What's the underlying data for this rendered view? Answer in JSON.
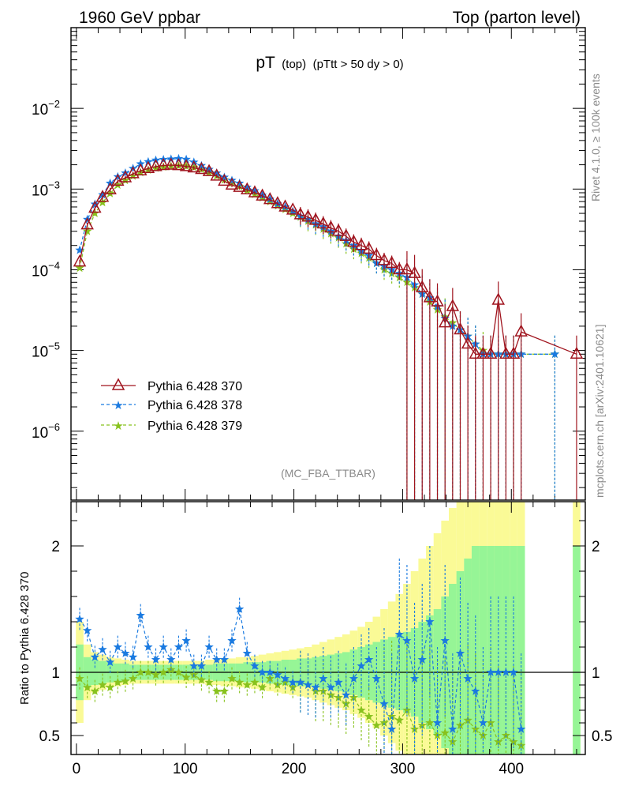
{
  "header": {
    "left": "1960 GeV ppbar",
    "right": "Top (parton level)"
  },
  "side_labels": {
    "rivet": "Rivet 4.1.0, ≥ 100k events",
    "mcplots": "mcplots.cern.ch [arXiv:2401.10621]"
  },
  "chart_data": [
    {
      "type": "scatter",
      "panel": "main",
      "title": {
        "main": "pT",
        "sub": "(top)",
        "cut": "(pTtt > 50 dy > 0)"
      },
      "analysis": "(MC_FBA_TTBAR)",
      "yscale": "log",
      "xlim": [
        -5,
        468
      ],
      "ylim": [
        1.4e-07,
        0.1
      ],
      "yticks": [
        {
          "value": 0.01,
          "mant": "10",
          "exp": "−2"
        },
        {
          "value": 0.001,
          "mant": "10",
          "exp": "−3"
        },
        {
          "value": 0.0001,
          "mant": "10",
          "exp": "−4"
        },
        {
          "value": 1e-05,
          "mant": "10",
          "exp": "−5"
        },
        {
          "value": 1e-06,
          "mant": "10",
          "exp": "−6"
        }
      ],
      "legend": [
        "Pythia 6.428 370",
        "Pythia 6.428 378",
        "Pythia 6.428 379"
      ],
      "series": [
        {
          "name": "Pythia 6.428 370",
          "color": "#a0141e",
          "marker": "triangle",
          "line": "solid",
          "x": [
            3,
            10,
            17,
            24,
            31,
            38,
            45,
            52,
            59,
            66,
            73,
            80,
            87,
            94,
            101,
            108,
            115,
            122,
            129,
            136,
            143,
            150,
            157,
            164,
            171,
            178,
            185,
            192,
            199,
            206,
            213,
            220,
            227,
            234,
            241,
            248,
            255,
            262,
            269,
            276,
            283,
            290,
            297,
            304,
            311,
            318,
            325,
            332,
            339,
            346,
            353,
            360,
            367,
            374,
            381,
            388,
            395,
            402,
            409,
            460
          ],
          "y": [
            0.000125,
            0.00036,
            0.00058,
            0.00079,
            0.00098,
            0.00125,
            0.00138,
            0.00155,
            0.00168,
            0.0018,
            0.0019,
            0.00196,
            0.00198,
            0.00195,
            0.0019,
            0.00183,
            0.00175,
            0.00165,
            0.00145,
            0.00125,
            0.00112,
            0.00105,
            0.00098,
            0.0009,
            0.00082,
            0.00074,
            0.00066,
            0.0006,
            0.00055,
            0.00048,
            0.00045,
            0.00041,
            0.00037,
            0.00033,
            0.0003,
            0.00026,
            0.00022,
            0.0002,
            0.00018,
            0.00015,
            0.00013,
            0.00012,
            0.0001,
            0.0001,
            9e-05,
            6e-05,
            4.5e-05,
            4e-05,
            2.2e-05,
            3.5e-05,
            1.8e-05,
            1.2e-05,
            9e-06,
            9e-06,
            9e-06,
            4.2e-05,
            9e-06,
            9e-06,
            1.7e-05,
            9e-06
          ]
        },
        {
          "name": "Pythia 6.428 378",
          "color": "#1a7ae0",
          "marker": "star",
          "line": "dashed",
          "x": [
            3,
            10,
            17,
            24,
            31,
            38,
            45,
            52,
            59,
            66,
            73,
            80,
            87,
            94,
            101,
            108,
            115,
            122,
            129,
            136,
            143,
            150,
            157,
            164,
            171,
            178,
            185,
            192,
            199,
            206,
            213,
            220,
            227,
            234,
            241,
            248,
            255,
            262,
            269,
            276,
            283,
            290,
            297,
            304,
            311,
            318,
            325,
            332,
            339,
            346,
            353,
            360,
            367,
            374,
            381,
            388,
            395,
            402,
            409,
            440
          ],
          "y": [
            0.000175,
            0.00042,
            0.00065,
            0.00085,
            0.00118,
            0.00142,
            0.00158,
            0.0018,
            0.00205,
            0.00218,
            0.00228,
            0.00232,
            0.00235,
            0.00238,
            0.00233,
            0.00215,
            0.00195,
            0.00175,
            0.00158,
            0.0014,
            0.00128,
            0.00118,
            0.00105,
            0.00095,
            0.00084,
            0.00075,
            0.00066,
            0.0006,
            0.00053,
            0.00046,
            0.00042,
            0.00037,
            0.00034,
            0.0003,
            0.00026,
            0.00023,
            0.0002,
            0.00017,
            0.00015,
            0.00012,
            0.00011,
            0.0001,
            9e-05,
            8e-05,
            6.5e-05,
            5e-05,
            4.5e-05,
            3.5e-05,
            2.5e-05,
            2e-05,
            1.8e-05,
            1.5e-05,
            1.2e-05,
            9e-06,
            9e-06,
            9e-06,
            9e-06,
            9e-06,
            9e-06,
            9e-06
          ]
        },
        {
          "name": "Pythia 6.428 379",
          "color": "#88c21e",
          "marker": "star",
          "line": "dashed",
          "x": [
            3,
            10,
            17,
            24,
            31,
            38,
            45,
            52,
            59,
            66,
            73,
            80,
            87,
            94,
            101,
            108,
            115,
            122,
            129,
            136,
            143,
            150,
            157,
            164,
            171,
            178,
            185,
            192,
            199,
            206,
            213,
            220,
            227,
            234,
            241,
            248,
            255,
            262,
            269,
            276,
            283,
            290,
            297,
            304,
            311,
            318,
            325,
            332,
            339,
            346,
            353,
            360,
            367,
            374,
            381,
            388,
            395,
            402,
            409,
            440
          ],
          "y": [
            0.000105,
            0.0003,
            0.0005,
            0.00068,
            0.00088,
            0.00112,
            0.00128,
            0.00145,
            0.0016,
            0.00172,
            0.00182,
            0.00188,
            0.00192,
            0.00194,
            0.00192,
            0.00186,
            0.00175,
            0.0016,
            0.00145,
            0.0013,
            0.00118,
            0.00108,
            0.00096,
            0.00086,
            0.00078,
            0.0007,
            0.00062,
            0.00056,
            0.0005,
            0.00045,
            0.0004,
            0.00036,
            0.00032,
            0.00028,
            0.00025,
            0.00021,
            0.00018,
            0.00016,
            0.00014,
            0.00012,
            0.0001,
            9e-05,
            8e-05,
            7e-05,
            6e-05,
            5e-05,
            4e-05,
            3.2e-05,
            2.6e-05,
            2.2e-05,
            1.8e-05,
            1.5e-05,
            1.2e-05,
            1e-05,
            9e-06,
            9e-06,
            9e-06,
            9e-06,
            9e-06,
            9e-06
          ]
        }
      ]
    },
    {
      "type": "scatter",
      "panel": "ratio",
      "ylabel": "Ratio to Pythia 6.428 370",
      "xlim": [
        -5,
        468
      ],
      "ylim": [
        0.35,
        2.35
      ],
      "yticks": [
        0.5,
        1,
        2
      ],
      "xticks": [
        0,
        100,
        200,
        300,
        400
      ],
      "reference": 1,
      "bands": {
        "x": [
          3,
          10,
          17,
          24,
          31,
          38,
          45,
          52,
          59,
          66,
          73,
          80,
          87,
          94,
          101,
          108,
          115,
          122,
          129,
          136,
          143,
          150,
          157,
          164,
          171,
          178,
          185,
          192,
          199,
          206,
          213,
          220,
          227,
          234,
          241,
          248,
          255,
          262,
          269,
          276,
          283,
          290,
          297,
          304,
          311,
          318,
          325,
          332,
          339,
          346,
          353,
          360,
          367,
          374,
          381,
          388,
          395,
          402,
          409,
          460
        ],
        "green_half": [
          0.22,
          0.12,
          0.1,
          0.09,
          0.08,
          0.07,
          0.07,
          0.06,
          0.06,
          0.06,
          0.06,
          0.06,
          0.06,
          0.06,
          0.06,
          0.06,
          0.06,
          0.06,
          0.07,
          0.07,
          0.07,
          0.07,
          0.08,
          0.08,
          0.08,
          0.09,
          0.09,
          0.1,
          0.1,
          0.11,
          0.11,
          0.12,
          0.13,
          0.14,
          0.15,
          0.16,
          0.18,
          0.2,
          0.22,
          0.24,
          0.26,
          0.28,
          0.3,
          0.32,
          0.35,
          0.4,
          0.45,
          0.5,
          0.6,
          0.7,
          0.8,
          0.9,
          1,
          1,
          1,
          1,
          1,
          1,
          1,
          1
        ],
        "yellow_half": [
          0.4,
          0.22,
          0.16,
          0.14,
          0.12,
          0.11,
          0.1,
          0.09,
          0.09,
          0.09,
          0.09,
          0.09,
          0.09,
          0.09,
          0.09,
          0.09,
          0.09,
          0.1,
          0.1,
          0.11,
          0.11,
          0.12,
          0.12,
          0.13,
          0.14,
          0.15,
          0.16,
          0.17,
          0.18,
          0.19,
          0.2,
          0.22,
          0.24,
          0.26,
          0.28,
          0.3,
          0.33,
          0.36,
          0.4,
          0.44,
          0.5,
          0.56,
          0.62,
          0.7,
          0.8,
          0.9,
          1,
          1.1,
          1.2,
          1.3,
          1.4,
          1.5,
          1.6,
          1.6,
          1.6,
          1.6,
          1.6,
          1.6,
          1.6,
          1.6
        ]
      },
      "series": [
        {
          "name": "Pythia 6.428 378",
          "color": "#1a7ae0",
          "x": [
            3,
            10,
            17,
            24,
            31,
            38,
            45,
            52,
            59,
            66,
            73,
            80,
            87,
            94,
            101,
            108,
            115,
            122,
            129,
            136,
            143,
            150,
            157,
            164,
            171,
            178,
            185,
            192,
            199,
            206,
            213,
            220,
            227,
            234,
            241,
            248,
            255,
            262,
            269,
            276,
            283,
            290,
            297,
            304,
            311,
            318,
            325,
            332,
            339,
            346,
            353,
            360,
            367,
            374,
            381,
            388,
            395,
            402,
            409
          ],
          "y": [
            1.42,
            1.33,
            1.12,
            1.18,
            1.08,
            1.2,
            1.15,
            1.12,
            1.45,
            1.2,
            1.1,
            1.2,
            1.1,
            1.2,
            1.25,
            1.05,
            1.05,
            1.2,
            1.1,
            1.1,
            1.25,
            1.5,
            1.15,
            1.05,
            1.0,
            1.0,
            0.98,
            0.95,
            0.92,
            0.92,
            0.9,
            0.88,
            0.95,
            0.88,
            0.92,
            0.82,
            0.95,
            1.05,
            1.1,
            0.95,
            0.75,
            0.55,
            1.3,
            1.25,
            0.95,
            1.1,
            1.4,
            0.6,
            1.25,
            0.55,
            1.15,
            0.95,
            0.85,
            0.6,
            1.0,
            1.0,
            1.0,
            1.0,
            0.55
          ]
        },
        {
          "name": "Pythia 6.428 379",
          "color": "#88c21e",
          "x": [
            3,
            10,
            17,
            24,
            31,
            38,
            45,
            52,
            59,
            66,
            73,
            80,
            87,
            94,
            101,
            108,
            115,
            122,
            129,
            136,
            143,
            150,
            157,
            164,
            171,
            178,
            185,
            192,
            199,
            206,
            213,
            220,
            227,
            234,
            241,
            248,
            255,
            262,
            269,
            276,
            283,
            290,
            297,
            304,
            311,
            318,
            325,
            332,
            339,
            346,
            353,
            360,
            367,
            374,
            381,
            388,
            395,
            402,
            409
          ],
          "y": [
            0.95,
            0.88,
            0.85,
            0.9,
            0.88,
            0.92,
            0.93,
            0.95,
            1.0,
            1.0,
            0.98,
            1.0,
            1.02,
            1.0,
            0.96,
            0.98,
            0.94,
            0.92,
            0.85,
            0.85,
            0.95,
            0.92,
            0.9,
            0.92,
            0.88,
            0.95,
            0.9,
            0.92,
            0.88,
            0.92,
            0.9,
            0.85,
            0.85,
            0.82,
            0.8,
            0.75,
            0.8,
            0.7,
            0.65,
            0.58,
            0.6,
            0.65,
            0.62,
            0.7,
            0.55,
            0.58,
            0.6,
            0.5,
            0.52,
            0.45,
            0.58,
            0.62,
            0.55,
            0.5,
            0.6,
            0.45,
            0.5,
            0.45,
            0.42
          ]
        }
      ]
    }
  ]
}
